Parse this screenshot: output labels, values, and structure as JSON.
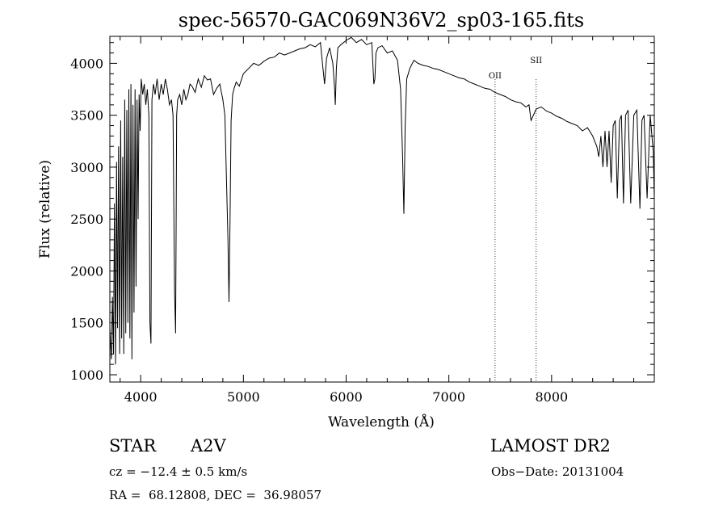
{
  "chart_data": {
    "type": "line",
    "title": "spec-56570-GAC069N36V2_sp03-165.fits",
    "xlabel": "Wavelength (Å)",
    "ylabel": "Flux (relative)",
    "xlim": [
      3700,
      9000
    ],
    "ylim": [
      930,
      4260
    ],
    "x_ticks": [
      4000,
      5000,
      6000,
      7000,
      8000
    ],
    "y_ticks": [
      1000,
      1500,
      2000,
      2500,
      3000,
      3500,
      4000
    ],
    "grid": false,
    "line_color": "#000000",
    "series": [
      {
        "x": [
          3700,
          3715,
          3725,
          3735,
          3745,
          3755,
          3765,
          3775,
          3785,
          3795,
          3805,
          3815,
          3825,
          3835,
          3845,
          3855,
          3865,
          3875,
          3885,
          3895,
          3905,
          3915,
          3925,
          3935,
          3945,
          3955,
          3965,
          3975,
          3985,
          3995,
          4005,
          4020,
          4035,
          4050,
          4065,
          4080,
          4090,
          4100,
          4110,
          4125,
          4140,
          4160,
          4180,
          4200,
          4220,
          4240,
          4260,
          4280,
          4300,
          4315,
          4330,
          4340,
          4350,
          4360,
          4380,
          4400,
          4420,
          4440,
          4460,
          4480,
          4500,
          4530,
          4560,
          4590,
          4620,
          4650,
          4680,
          4710,
          4740,
          4770,
          4800,
          4820,
          4835,
          4850,
          4860,
          4870,
          4880,
          4895,
          4910,
          4930,
          4960,
          5000,
          5050,
          5100,
          5150,
          5200,
          5250,
          5300,
          5350,
          5400,
          5450,
          5500,
          5550,
          5600,
          5650,
          5700,
          5750,
          5770,
          5790,
          5810,
          5840,
          5870,
          5885,
          5895,
          5905,
          5920,
          5950,
          6000,
          6050,
          6100,
          6150,
          6200,
          6250,
          6270,
          6280,
          6290,
          6310,
          6350,
          6400,
          6450,
          6500,
          6530,
          6550,
          6562,
          6575,
          6590,
          6620,
          6660,
          6700,
          6750,
          6800,
          6850,
          6900,
          6950,
          7000,
          7050,
          7100,
          7150,
          7200,
          7250,
          7300,
          7350,
          7400,
          7450,
          7500,
          7550,
          7600,
          7650,
          7700,
          7750,
          7780,
          7800,
          7850,
          7900,
          7950,
          8000,
          8050,
          8100,
          8150,
          8200,
          8250,
          8300,
          8350,
          8400,
          8420,
          8440,
          8460,
          8480,
          8500,
          8520,
          8540,
          8560,
          8580,
          8600,
          8620,
          8640,
          8662,
          8680,
          8700,
          8720,
          8745,
          8770,
          8800,
          8830,
          8860,
          8880,
          8900,
          8930,
          8960,
          8990,
          9000
        ],
        "y": [
          1450,
          1150,
          1750,
          1200,
          2650,
          1100,
          3050,
          1450,
          3200,
          1200,
          3450,
          1350,
          3100,
          1200,
          3650,
          1400,
          3550,
          1500,
          3750,
          1350,
          3800,
          1150,
          3600,
          1600,
          3750,
          1850,
          3650,
          2500,
          3700,
          3350,
          3850,
          3700,
          3800,
          3600,
          3750,
          3500,
          1500,
          1300,
          3650,
          3800,
          3700,
          3850,
          3650,
          3800,
          3700,
          3850,
          3750,
          3600,
          3650,
          3500,
          1800,
          1400,
          3500,
          3650,
          3700,
          3600,
          3750,
          3650,
          3700,
          3800,
          3780,
          3720,
          3850,
          3770,
          3880,
          3840,
          3850,
          3700,
          3760,
          3800,
          3650,
          3500,
          2900,
          2300,
          1700,
          2500,
          3450,
          3700,
          3760,
          3820,
          3780,
          3900,
          3950,
          4000,
          3980,
          4020,
          4050,
          4060,
          4100,
          4080,
          4100,
          4120,
          4140,
          4150,
          4180,
          4160,
          4200,
          4000,
          3800,
          4050,
          4150,
          4000,
          3800,
          3600,
          3950,
          4150,
          4180,
          4220,
          4250,
          4200,
          4230,
          4180,
          4200,
          3800,
          3850,
          4100,
          4150,
          4170,
          4100,
          4120,
          4030,
          3750,
          3100,
          2550,
          3400,
          3850,
          3950,
          4030,
          4000,
          3980,
          3970,
          3950,
          3940,
          3920,
          3900,
          3880,
          3860,
          3850,
          3820,
          3800,
          3780,
          3760,
          3750,
          3720,
          3700,
          3680,
          3650,
          3630,
          3620,
          3580,
          3600,
          3450,
          3560,
          3580,
          3540,
          3520,
          3490,
          3470,
          3440,
          3420,
          3400,
          3350,
          3380,
          3300,
          3250,
          3200,
          3100,
          3300,
          3000,
          3350,
          3000,
          3350,
          2850,
          3400,
          3450,
          2700,
          3450,
          3500,
          2650,
          3500,
          3550,
          2650,
          3500,
          3550,
          2600,
          3450,
          3500,
          2700,
          3500,
          3150,
          2700
        ]
      }
    ],
    "annotations": [
      {
        "label": "OII",
        "x": 7450
      },
      {
        "label": "SII",
        "x": 7850
      }
    ]
  },
  "info": {
    "object_class": "STAR",
    "subclass": "A2V",
    "survey": "LAMOST DR2",
    "redshift": "cz = −12.4 ± 0.5 km/s",
    "obs_date": "Obs−Date: 20131004",
    "coords": "RA =  68.12808, DEC =  36.98057"
  }
}
